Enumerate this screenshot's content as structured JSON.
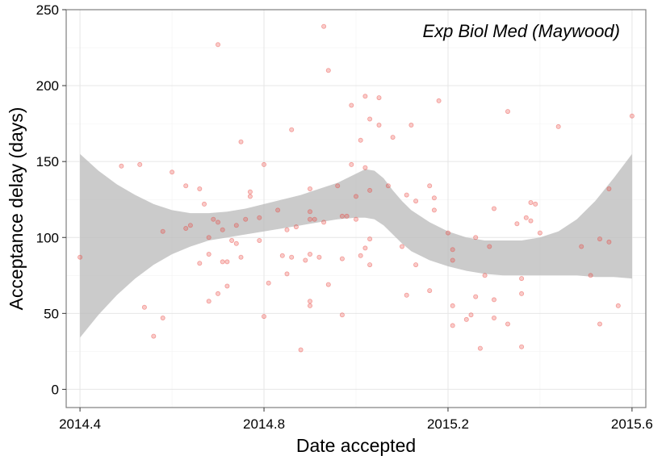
{
  "chart_data": {
    "type": "scatter",
    "title": "Exp Biol Med (Maywood)",
    "xlabel": "Date accepted",
    "ylabel": "Acceptance delay (days)",
    "xlim": [
      2014.37,
      2015.63
    ],
    "ylim": [
      -12,
      250
    ],
    "x_ticks": [
      2014.4,
      2014.8,
      2015.2,
      2015.6
    ],
    "x_tick_labels": [
      "2014.4",
      "2014.8",
      "2015.2",
      "2015.6"
    ],
    "y_ticks": [
      0,
      50,
      100,
      150,
      200,
      250
    ],
    "y_tick_labels": [
      "0",
      "50",
      "100",
      "150",
      "200",
      "250"
    ],
    "grid": true,
    "point_color": "#e8413a",
    "band_color": "#bdbdbd",
    "points": [
      {
        "x": 2014.4,
        "y": 87
      },
      {
        "x": 2014.49,
        "y": 147
      },
      {
        "x": 2014.53,
        "y": 148
      },
      {
        "x": 2014.54,
        "y": 54
      },
      {
        "x": 2014.56,
        "y": 35
      },
      {
        "x": 2014.58,
        "y": 104
      },
      {
        "x": 2014.58,
        "y": 47
      },
      {
        "x": 2014.6,
        "y": 143
      },
      {
        "x": 2014.63,
        "y": 134
      },
      {
        "x": 2014.63,
        "y": 106
      },
      {
        "x": 2014.64,
        "y": 108
      },
      {
        "x": 2014.66,
        "y": 132
      },
      {
        "x": 2014.66,
        "y": 83
      },
      {
        "x": 2014.67,
        "y": 122
      },
      {
        "x": 2014.68,
        "y": 100
      },
      {
        "x": 2014.68,
        "y": 89
      },
      {
        "x": 2014.68,
        "y": 58
      },
      {
        "x": 2014.69,
        "y": 112
      },
      {
        "x": 2014.7,
        "y": 227
      },
      {
        "x": 2014.7,
        "y": 110
      },
      {
        "x": 2014.7,
        "y": 63
      },
      {
        "x": 2014.71,
        "y": 105
      },
      {
        "x": 2014.71,
        "y": 84
      },
      {
        "x": 2014.72,
        "y": 84
      },
      {
        "x": 2014.72,
        "y": 68
      },
      {
        "x": 2014.73,
        "y": 98
      },
      {
        "x": 2014.74,
        "y": 96
      },
      {
        "x": 2014.74,
        "y": 108
      },
      {
        "x": 2014.75,
        "y": 163
      },
      {
        "x": 2014.75,
        "y": 87
      },
      {
        "x": 2014.76,
        "y": 112
      },
      {
        "x": 2014.77,
        "y": 127
      },
      {
        "x": 2014.77,
        "y": 130
      },
      {
        "x": 2014.79,
        "y": 98
      },
      {
        "x": 2014.79,
        "y": 113
      },
      {
        "x": 2014.8,
        "y": 148
      },
      {
        "x": 2014.8,
        "y": 48
      },
      {
        "x": 2014.81,
        "y": 70
      },
      {
        "x": 2014.83,
        "y": 118
      },
      {
        "x": 2014.84,
        "y": 88
      },
      {
        "x": 2014.85,
        "y": 105
      },
      {
        "x": 2014.85,
        "y": 76
      },
      {
        "x": 2014.86,
        "y": 87
      },
      {
        "x": 2014.86,
        "y": 171
      },
      {
        "x": 2014.87,
        "y": 107
      },
      {
        "x": 2014.88,
        "y": 26
      },
      {
        "x": 2014.89,
        "y": 85
      },
      {
        "x": 2014.9,
        "y": 112
      },
      {
        "x": 2014.9,
        "y": 117
      },
      {
        "x": 2014.9,
        "y": 132
      },
      {
        "x": 2014.9,
        "y": 89
      },
      {
        "x": 2014.9,
        "y": 58
      },
      {
        "x": 2014.9,
        "y": 55
      },
      {
        "x": 2014.91,
        "y": 112
      },
      {
        "x": 2014.92,
        "y": 87
      },
      {
        "x": 2014.93,
        "y": 239
      },
      {
        "x": 2014.93,
        "y": 110
      },
      {
        "x": 2014.94,
        "y": 210
      },
      {
        "x": 2014.94,
        "y": 69
      },
      {
        "x": 2014.96,
        "y": 134
      },
      {
        "x": 2014.97,
        "y": 114
      },
      {
        "x": 2014.97,
        "y": 86
      },
      {
        "x": 2014.97,
        "y": 49
      },
      {
        "x": 2014.98,
        "y": 114
      },
      {
        "x": 2014.99,
        "y": 187
      },
      {
        "x": 2014.99,
        "y": 148
      },
      {
        "x": 2015.0,
        "y": 127
      },
      {
        "x": 2015.0,
        "y": 112
      },
      {
        "x": 2015.01,
        "y": 164
      },
      {
        "x": 2015.01,
        "y": 88
      },
      {
        "x": 2015.02,
        "y": 193
      },
      {
        "x": 2015.02,
        "y": 146
      },
      {
        "x": 2015.02,
        "y": 93
      },
      {
        "x": 2015.03,
        "y": 178
      },
      {
        "x": 2015.03,
        "y": 131
      },
      {
        "x": 2015.03,
        "y": 99
      },
      {
        "x": 2015.03,
        "y": 82
      },
      {
        "x": 2015.05,
        "y": 192
      },
      {
        "x": 2015.05,
        "y": 174
      },
      {
        "x": 2015.07,
        "y": 134
      },
      {
        "x": 2015.08,
        "y": 166
      },
      {
        "x": 2015.1,
        "y": 94
      },
      {
        "x": 2015.11,
        "y": 128
      },
      {
        "x": 2015.11,
        "y": 62
      },
      {
        "x": 2015.12,
        "y": 174
      },
      {
        "x": 2015.13,
        "y": 124
      },
      {
        "x": 2015.13,
        "y": 82
      },
      {
        "x": 2015.16,
        "y": 134
      },
      {
        "x": 2015.16,
        "y": 65
      },
      {
        "x": 2015.17,
        "y": 126
      },
      {
        "x": 2015.17,
        "y": 118
      },
      {
        "x": 2015.18,
        "y": 190
      },
      {
        "x": 2015.2,
        "y": 103
      },
      {
        "x": 2015.21,
        "y": 92
      },
      {
        "x": 2015.21,
        "y": 85
      },
      {
        "x": 2015.21,
        "y": 55
      },
      {
        "x": 2015.21,
        "y": 42
      },
      {
        "x": 2015.24,
        "y": 46
      },
      {
        "x": 2015.25,
        "y": 49
      },
      {
        "x": 2015.26,
        "y": 100
      },
      {
        "x": 2015.26,
        "y": 61
      },
      {
        "x": 2015.27,
        "y": 27
      },
      {
        "x": 2015.28,
        "y": 75
      },
      {
        "x": 2015.29,
        "y": 94
      },
      {
        "x": 2015.3,
        "y": 119
      },
      {
        "x": 2015.3,
        "y": 59
      },
      {
        "x": 2015.3,
        "y": 47
      },
      {
        "x": 2015.33,
        "y": 183
      },
      {
        "x": 2015.33,
        "y": 43
      },
      {
        "x": 2015.35,
        "y": 109
      },
      {
        "x": 2015.36,
        "y": 73
      },
      {
        "x": 2015.36,
        "y": 63
      },
      {
        "x": 2015.36,
        "y": 28
      },
      {
        "x": 2015.37,
        "y": 113
      },
      {
        "x": 2015.38,
        "y": 111
      },
      {
        "x": 2015.38,
        "y": 123
      },
      {
        "x": 2015.39,
        "y": 122
      },
      {
        "x": 2015.4,
        "y": 103
      },
      {
        "x": 2015.44,
        "y": 173
      },
      {
        "x": 2015.49,
        "y": 94
      },
      {
        "x": 2015.51,
        "y": 75
      },
      {
        "x": 2015.53,
        "y": 99
      },
      {
        "x": 2015.53,
        "y": 43
      },
      {
        "x": 2015.55,
        "y": 97
      },
      {
        "x": 2015.55,
        "y": 132
      },
      {
        "x": 2015.57,
        "y": 55
      },
      {
        "x": 2015.6,
        "y": 180
      }
    ],
    "ribbon": {
      "x": [
        2014.4,
        2014.44,
        2014.48,
        2014.52,
        2014.56,
        2014.6,
        2014.64,
        2014.68,
        2014.72,
        2014.76,
        2014.8,
        2014.84,
        2014.88,
        2014.92,
        2014.96,
        2015.0,
        2015.02,
        2015.04,
        2015.06,
        2015.08,
        2015.1,
        2015.12,
        2015.16,
        2015.2,
        2015.24,
        2015.28,
        2015.32,
        2015.36,
        2015.4,
        2015.44,
        2015.48,
        2015.52,
        2015.56,
        2015.6
      ],
      "upper": [
        155,
        144,
        135,
        128,
        122,
        118,
        116,
        116,
        117,
        119,
        122,
        125,
        128,
        132,
        136,
        142,
        145,
        144,
        139,
        131,
        124,
        118,
        110,
        104,
        100,
        98,
        98,
        98,
        100,
        104,
        112,
        124,
        139,
        155
      ],
      "lower": [
        34,
        49,
        62,
        73,
        82,
        89,
        94,
        98,
        100,
        102,
        104,
        106,
        108,
        110,
        112,
        113,
        113,
        112,
        108,
        102,
        96,
        91,
        85,
        81,
        78,
        76,
        75,
        75,
        75,
        75,
        75,
        74,
        74,
        73
      ]
    }
  }
}
